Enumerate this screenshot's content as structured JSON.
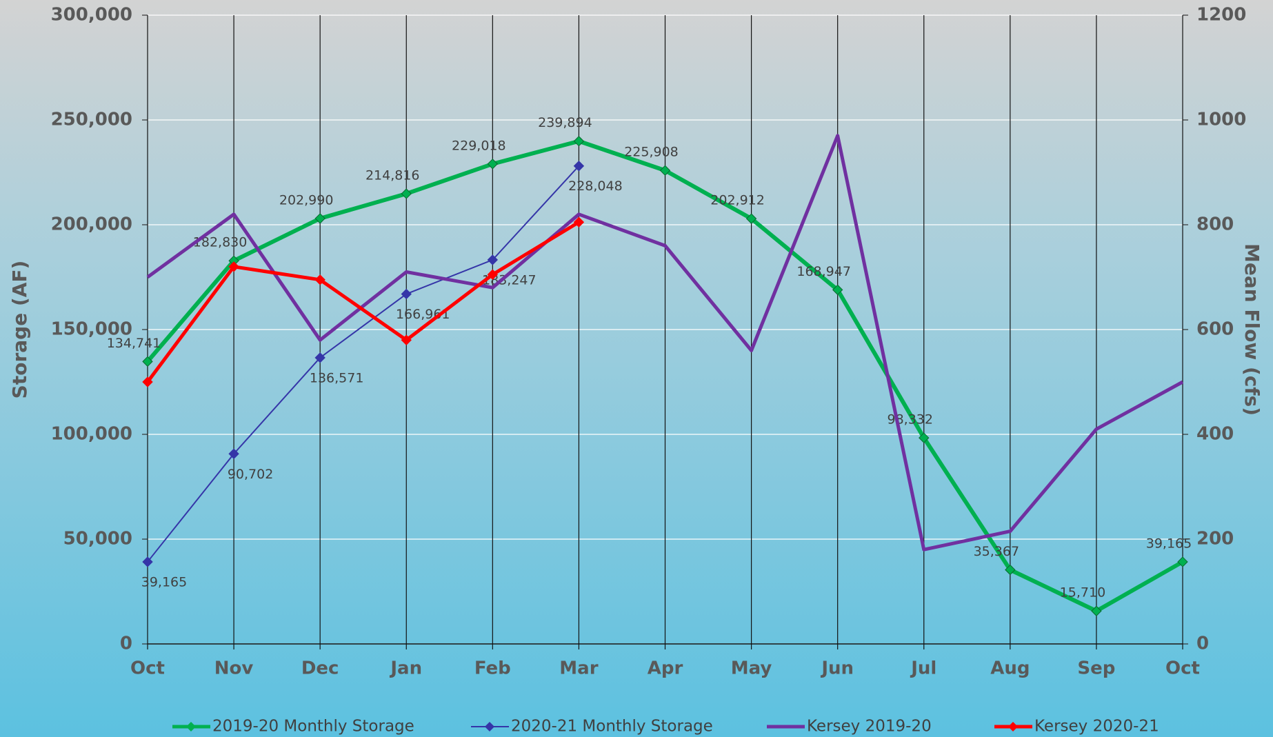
{
  "chart_data": {
    "type": "line",
    "y_label": "Storage (AF)",
    "y2_label": "Mean Flow (cfs)",
    "categories": [
      "Oct",
      "Nov",
      "Dec",
      "Jan",
      "Feb",
      "Mar",
      "Apr",
      "May",
      "Jun",
      "Jul",
      "Aug",
      "Sep",
      "Oct"
    ],
    "ylim": [
      0,
      300000
    ],
    "yticks": [
      0,
      {
        "value": 50000,
        "label": "50,000"
      },
      {
        "value": 100000,
        "label": "100,000"
      },
      {
        "value": 150000,
        "label": "150,000"
      },
      {
        "value": 200000,
        "label": "200,000"
      },
      {
        "value": 250000,
        "label": "250,000"
      },
      {
        "value": 300000,
        "label": "300,000"
      }
    ],
    "y2lim": [
      0,
      1200
    ],
    "y2ticks": [
      0,
      200,
      400,
      600,
      800,
      1000,
      1200
    ],
    "grid": true,
    "legend": "bottom",
    "series": [
      {
        "name": "2019-20 Monthly Storage",
        "color": "#00b050",
        "marker": "diamond",
        "values": [
          134741,
          182830,
          202990,
          214816,
          229018,
          239894,
          225908,
          202912,
          168947,
          98332,
          35367,
          15710,
          39165
        ],
        "value_labels": [
          "134,741",
          "182,830",
          "202,990",
          "214,816",
          "229,018",
          "239,894",
          "225,908",
          "202,912",
          "168,947",
          "98,332",
          "35,367",
          "15,710",
          "39,165"
        ]
      },
      {
        "name": "2020-21 Monthly Storage",
        "color": "#3535a8",
        "marker": "diamond",
        "values": [
          39165,
          90702,
          136571,
          166961,
          183247,
          228048,
          null,
          null,
          null,
          null,
          null,
          null,
          null
        ],
        "value_labels": [
          "39,165",
          "90,702",
          "136,571",
          "166,961",
          "183,247",
          "228,048",
          null,
          null,
          null,
          null,
          null,
          null,
          null
        ]
      },
      {
        "name": "Kersey 2019-20",
        "color": "#7030a0",
        "marker": "none",
        "axis": "y2",
        "values": [
          700,
          820,
          580,
          710,
          680,
          820,
          760,
          560,
          970,
          180,
          215,
          410,
          500
        ]
      },
      {
        "name": "Kersey 2020-21",
        "color": "#ff0000",
        "marker": "diamond",
        "axis": "y2",
        "values": [
          500,
          720,
          695,
          580,
          705,
          805,
          null,
          null,
          null,
          null,
          null,
          null,
          null
        ]
      }
    ]
  }
}
